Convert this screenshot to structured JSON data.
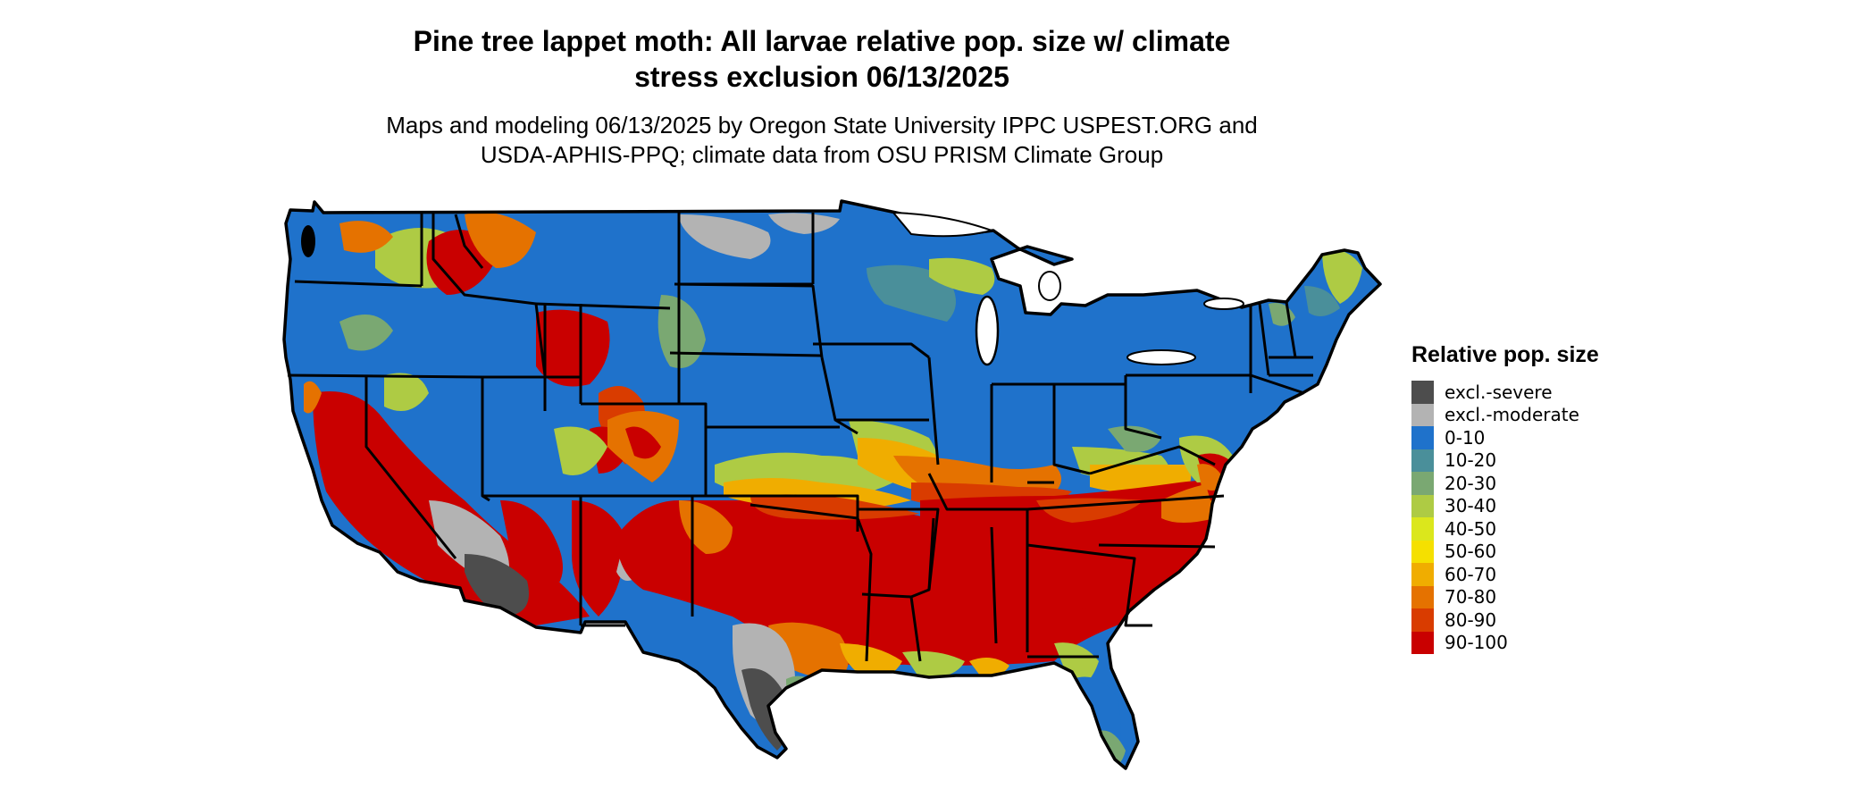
{
  "title": {
    "line1": "Pine tree lappet moth: All larvae relative pop. size w/ climate",
    "line2": "stress exclusion 06/13/2025"
  },
  "subtitle": {
    "line1": "Maps and modeling 06/13/2025 by Oregon State University IPPC USPEST.ORG and",
    "line2": "USDA-APHIS-PPQ; climate data from OSU PRISM Climate Group"
  },
  "legend": {
    "title": "Relative pop. size",
    "items": [
      {
        "label": "excl.-severe",
        "color": "#4d4d4d"
      },
      {
        "label": "excl.-moderate",
        "color": "#b3b3b3"
      },
      {
        "label": "0-10",
        "color": "#1f72cb"
      },
      {
        "label": "10-20",
        "color": "#4a8f9a"
      },
      {
        "label": "20-30",
        "color": "#7aa872"
      },
      {
        "label": "30-40",
        "color": "#aecb44"
      },
      {
        "label": "40-50",
        "color": "#dbe71c"
      },
      {
        "label": "50-60",
        "color": "#f5e000"
      },
      {
        "label": "60-70",
        "color": "#f0ad00"
      },
      {
        "label": "70-80",
        "color": "#e57200"
      },
      {
        "label": "80-90",
        "color": "#d93c00"
      },
      {
        "label": "90-100",
        "color": "#c90000"
      }
    ]
  },
  "map": {
    "region": "Contiguous United States",
    "state_border_color": "#000000"
  }
}
